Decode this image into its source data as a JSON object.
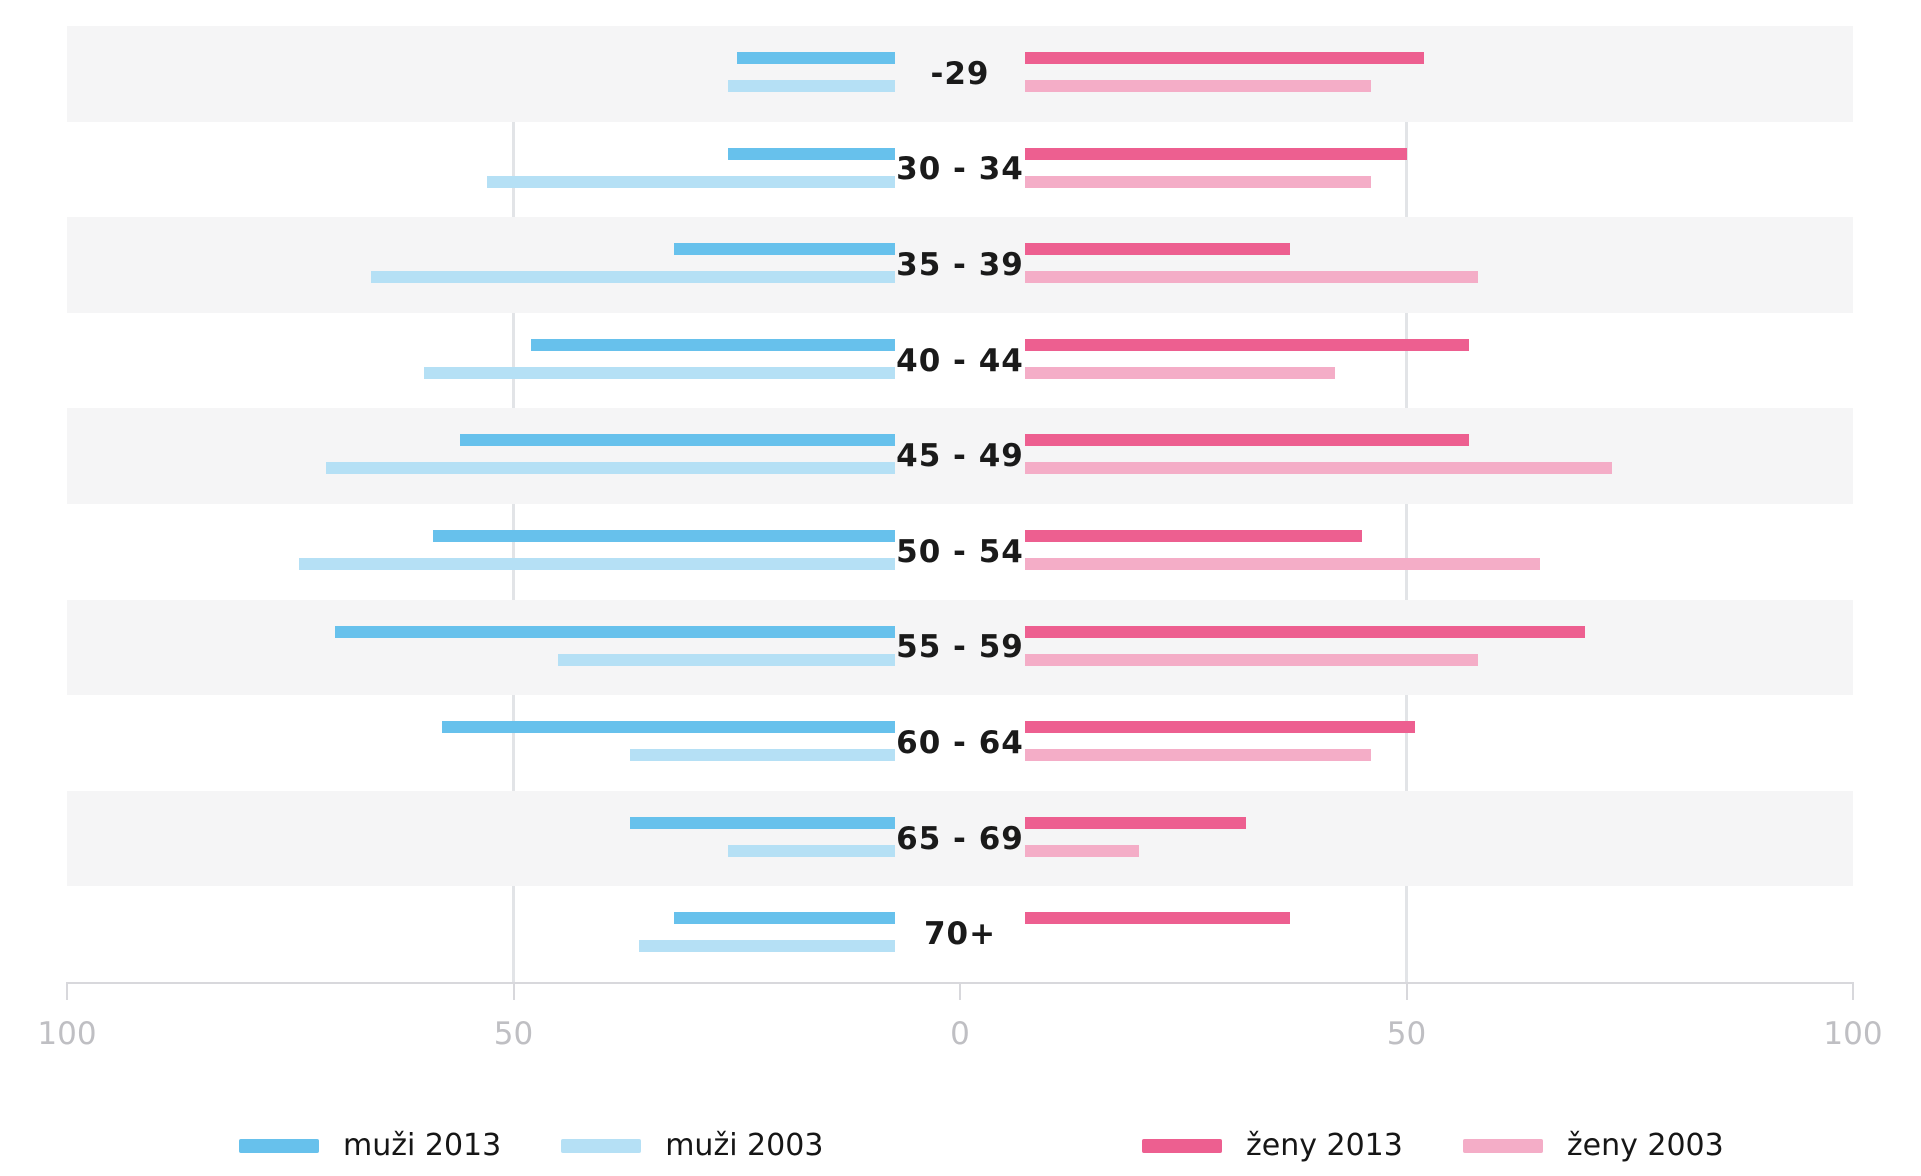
{
  "chart_data": {
    "type": "bar",
    "subtype": "population-pyramid",
    "title": "",
    "xlabel": "",
    "ylabel": "",
    "categories": [
      "-29",
      "30 - 34",
      "35 - 39",
      "40 - 44",
      "45 - 49",
      "50 - 54",
      "55 - 59",
      "60 - 64",
      "65 - 69",
      "70+"
    ],
    "series": [
      {
        "name": "muži 2013",
        "side": "left",
        "lane": "top",
        "color": "#67c1ec",
        "values": [
          25,
          26,
          32,
          48,
          56,
          59,
          70,
          58,
          37,
          32
        ]
      },
      {
        "name": "muži 2003",
        "side": "left",
        "lane": "bottom",
        "color": "#b5e0f5",
        "values": [
          26,
          53,
          66,
          60,
          71,
          74,
          45,
          37,
          26,
          36
        ]
      },
      {
        "name": "ženy 2013",
        "side": "right",
        "lane": "top",
        "color": "#ed5f90",
        "values": [
          52,
          50,
          37,
          57,
          57,
          45,
          70,
          51,
          32,
          37
        ]
      },
      {
        "name": "ženy 2003",
        "side": "right",
        "lane": "bottom",
        "color": "#f4adc7",
        "values": [
          46,
          46,
          58,
          42,
          73,
          65,
          58,
          46,
          20,
          null
        ]
      }
    ],
    "axis": {
      "range": [
        -100,
        100
      ],
      "ticks": [
        -100,
        -50,
        0,
        50,
        100
      ],
      "tick_labels": [
        "100",
        "50",
        "0",
        "50",
        "100"
      ],
      "gridlines_at": [
        -50,
        50
      ],
      "grid": true
    },
    "legend": {
      "position": "bottom",
      "left_items": [
        {
          "label": "muži 2013",
          "color": "#67c1ec"
        },
        {
          "label": "muži 2003",
          "color": "#b5e0f5"
        }
      ],
      "right_items": [
        {
          "label": "ženy 2013",
          "color": "#ed5f90"
        },
        {
          "label": "ženy 2003",
          "color": "#f4adc7"
        }
      ]
    },
    "colors": {
      "row_stripe": "#f5f5f6",
      "row_plain": "#ffffff",
      "gridline": "#e2e4e7",
      "axis_line": "#d8d8dc",
      "tick_mark": "#d8d8dc",
      "tick_label": "#bfbfc3",
      "age_label": "#1a1a1a",
      "legend_label": "#161616"
    }
  }
}
